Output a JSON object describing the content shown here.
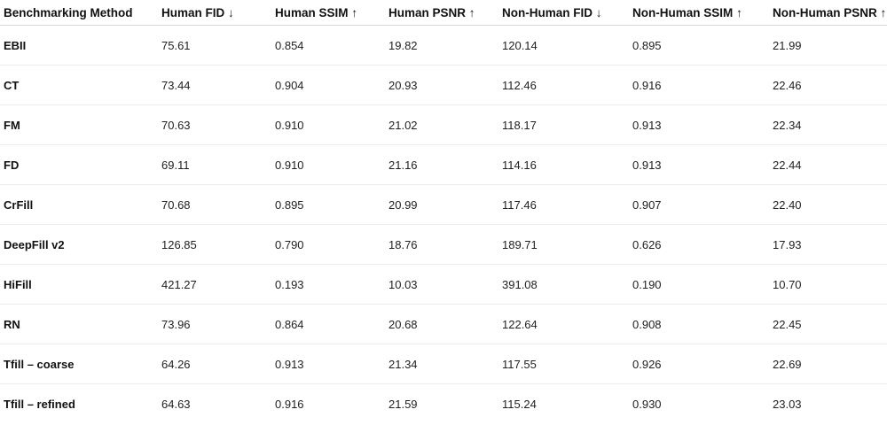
{
  "table": {
    "headers": [
      "Benchmarking Method",
      "Human FID ↓",
      "Human SSIM ↑",
      "Human PSNR ↑",
      "Non-Human FID ↓",
      "Non-Human SSIM ↑",
      "Non-Human PSNR ↑"
    ],
    "rows": [
      [
        "EBII",
        "75.61",
        "0.854",
        "19.82",
        "120.14",
        "0.895",
        "21.99"
      ],
      [
        "CT",
        "73.44",
        "0.904",
        "20.93",
        "112.46",
        "0.916",
        "22.46"
      ],
      [
        "FM",
        "70.63",
        "0.910",
        "21.02",
        "118.17",
        "0.913",
        "22.34"
      ],
      [
        "FD",
        "69.11",
        "0.910",
        "21.16",
        "114.16",
        "0.913",
        "22.44"
      ],
      [
        "CrFill",
        "70.68",
        "0.895",
        "20.99",
        "117.46",
        "0.907",
        "22.40"
      ],
      [
        "DeepFill v2",
        "126.85",
        "0.790",
        "18.76",
        "189.71",
        "0.626",
        "17.93"
      ],
      [
        "HiFill",
        "421.27",
        "0.193",
        "10.03",
        "391.08",
        "0.190",
        "10.70"
      ],
      [
        "RN",
        "73.96",
        "0.864",
        "20.68",
        "122.64",
        "0.908",
        "22.45"
      ],
      [
        "Tfill – coarse",
        "64.26",
        "0.913",
        "21.34",
        "117.55",
        "0.926",
        "22.69"
      ],
      [
        "Tfill – refined",
        "64.63",
        "0.916",
        "21.59",
        "115.24",
        "0.930",
        "23.03"
      ]
    ]
  }
}
